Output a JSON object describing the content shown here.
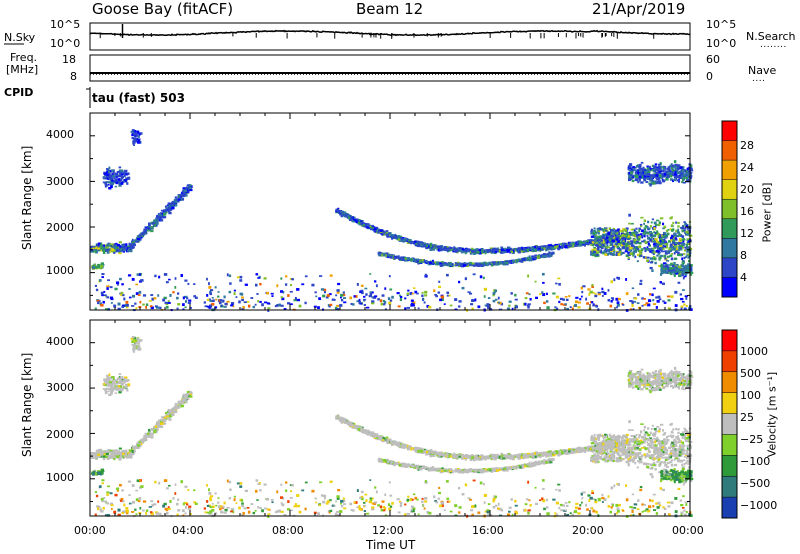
{
  "header": {
    "station": "Goose Bay (fitACF)",
    "beam": "Beam 12",
    "date": "21/Apr/2019"
  },
  "noise_panel": {
    "left_label": "N.Sky",
    "left_ticks": [
      "10^5",
      "10^0"
    ],
    "right_label": "N.Search",
    "right_ticks": [
      "10^5",
      "10^0"
    ],
    "right_dots": "........"
  },
  "freq_panel": {
    "left_label_line1": "Freq.",
    "left_label_line2": "[MHz]",
    "left_ticks": [
      "18",
      "8"
    ],
    "right_label": "Nave",
    "right_ticks": [
      "60",
      "0"
    ],
    "right_dots": "...."
  },
  "cpid": {
    "label": "CPID",
    "value": "tau (fast) 503"
  },
  "chart_data": [
    {
      "type": "heatmap",
      "title": "",
      "xlabel": "Time UT",
      "ylabel": "Slant Range [km]",
      "xlim": [
        0,
        24
      ],
      "ylim": [
        180,
        4500
      ],
      "x_ticks": [
        "00:00",
        "04:00",
        "08:00",
        "12:00",
        "16:00",
        "20:00",
        "00:00"
      ],
      "y_ticks": [
        "1000",
        "2000",
        "3000",
        "4000"
      ],
      "colorbar": {
        "label": "Power [dB]",
        "ticks": [
          "28",
          "24",
          "20",
          "16",
          "12",
          "8",
          "4"
        ],
        "colors": [
          "#0000ff",
          "#2d46c8",
          "#3078a0",
          "#2f9a5a",
          "#7fbf2a",
          "#e0d210",
          "#f0a000",
          "#f06000",
          "#ff0000"
        ]
      },
      "features": [
        {
          "t": [
            0.0,
            4.0
          ],
          "range_km": [
            1500,
            2800
          ],
          "dominant_db": 10
        },
        {
          "t": [
            10.0,
            22.0
          ],
          "range_km": [
            1500,
            2300
          ],
          "dominant_db": 8
        },
        {
          "t": [
            21.5,
            24.0
          ],
          "range_km": [
            1100,
            3600
          ],
          "dominant_db": 12
        }
      ]
    },
    {
      "type": "heatmap",
      "title": "",
      "xlabel": "Time UT",
      "ylabel": "Slant Range [km]",
      "xlim": [
        0,
        24
      ],
      "ylim": [
        180,
        4500
      ],
      "x_ticks": [
        "00:00",
        "04:00",
        "08:00",
        "12:00",
        "16:00",
        "20:00",
        "00:00"
      ],
      "y_ticks": [
        "1000",
        "2000",
        "3000",
        "4000"
      ],
      "colorbar": {
        "label": "Velocity [m s⁻¹]",
        "ticks": [
          "1000",
          "500",
          "100",
          "25",
          "−25",
          "−100",
          "−500",
          "−1000"
        ],
        "colors": [
          "#1a3fb0",
          "#2f7a7a",
          "#2f9a3a",
          "#7fd02a",
          "#bebebe",
          "#f0d010",
          "#f08c00",
          "#f04000",
          "#ff0000"
        ]
      },
      "features": [
        {
          "t": [
            0.0,
            4.0
          ],
          "range_km": [
            1500,
            2800
          ],
          "dominant_velocity": 0
        },
        {
          "t": [
            10.0,
            22.0
          ],
          "range_km": [
            1500,
            2300
          ],
          "dominant_velocity": 0
        },
        {
          "t": [
            21.5,
            24.0
          ],
          "range_km": [
            1100,
            3600
          ],
          "dominant_velocity": 0
        }
      ]
    }
  ]
}
